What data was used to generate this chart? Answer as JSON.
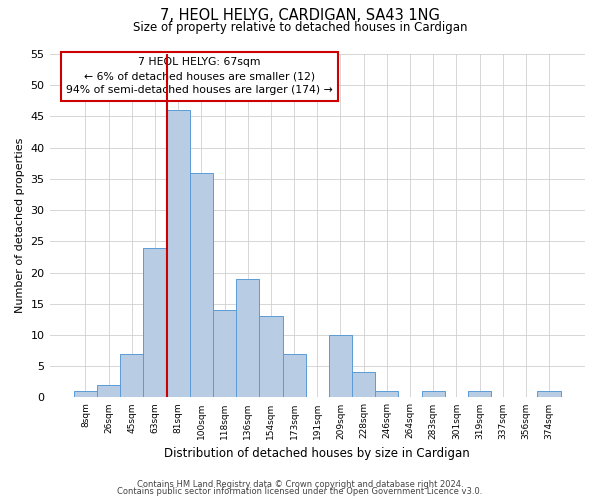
{
  "title": "7, HEOL HELYG, CARDIGAN, SA43 1NG",
  "subtitle": "Size of property relative to detached houses in Cardigan",
  "xlabel": "Distribution of detached houses by size in Cardigan",
  "ylabel": "Number of detached properties",
  "footer_line1": "Contains HM Land Registry data © Crown copyright and database right 2024.",
  "footer_line2": "Contains public sector information licensed under the Open Government Licence v3.0.",
  "bar_labels": [
    "8sqm",
    "26sqm",
    "45sqm",
    "63sqm",
    "81sqm",
    "100sqm",
    "118sqm",
    "136sqm",
    "154sqm",
    "173sqm",
    "191sqm",
    "209sqm",
    "228sqm",
    "246sqm",
    "264sqm",
    "283sqm",
    "301sqm",
    "319sqm",
    "337sqm",
    "356sqm",
    "374sqm"
  ],
  "bar_values": [
    1,
    2,
    7,
    24,
    46,
    36,
    14,
    19,
    13,
    7,
    0,
    10,
    4,
    1,
    0,
    1,
    0,
    1,
    0,
    0,
    1
  ],
  "bar_color": "#b8cce4",
  "bar_edge_color": "#5b9bd5",
  "ylim": [
    0,
    55
  ],
  "yticks": [
    0,
    5,
    10,
    15,
    20,
    25,
    30,
    35,
    40,
    45,
    50,
    55
  ],
  "property_line_x": 3.5,
  "property_line_color": "#cc0000",
  "annotation_line1": "7 HEOL HELYG: 67sqm",
  "annotation_line2": "← 6% of detached houses are smaller (12)",
  "annotation_line3": "94% of semi-detached houses are larger (174) →",
  "annotation_box_edge_color": "#cc0000",
  "background_color": "#ffffff",
  "grid_color": "#d0d0d0"
}
